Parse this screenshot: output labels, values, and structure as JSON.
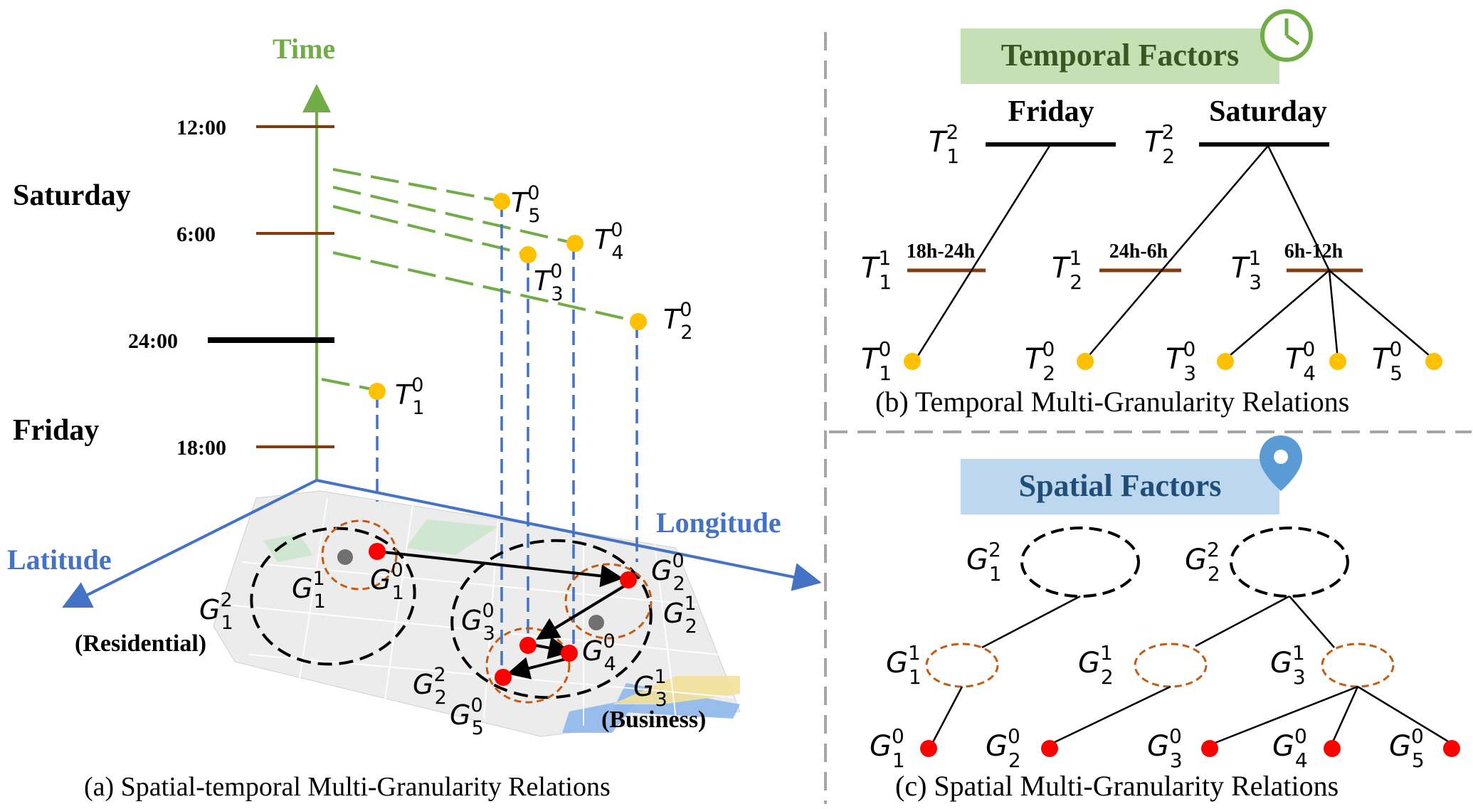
{
  "colors": {
    "time_axis": "#70ad47",
    "geo_axis": "#4472c4",
    "tick_brown": "#843c0c",
    "poi_yellow": "#ffc000",
    "poi_red": "#ff0000",
    "region_dash": "#000000",
    "sub_region_dash": "#c55a11",
    "temporal_header_bg": "#c5e0b4",
    "spatial_header_bg": "#bdd7ee",
    "divider_gray": "#a6a6a6"
  },
  "panel_a": {
    "axis_time": "Time",
    "axis_latitude": "Latitude",
    "axis_longitude": "Longitude",
    "ticks": [
      "12:00",
      "6:00",
      "24:00",
      "18:00"
    ],
    "day_saturday": "Saturday",
    "day_friday": "Friday",
    "region_residential": "(Residential)",
    "region_business": "(Business)",
    "caption": "(a) Spatial-temporal Multi-Granularity Relations",
    "time_points": [
      {
        "base": "T",
        "sub": "5",
        "sup": "0"
      },
      {
        "base": "T",
        "sub": "4",
        "sup": "0"
      },
      {
        "base": "T",
        "sub": "3",
        "sup": "0"
      },
      {
        "base": "T",
        "sub": "2",
        "sup": "0"
      },
      {
        "base": "T",
        "sub": "1",
        "sup": "0"
      }
    ],
    "geo_labels": [
      {
        "base": "G",
        "sub": "1",
        "sup": "1"
      },
      {
        "base": "G",
        "sub": "1",
        "sup": "0"
      },
      {
        "base": "G",
        "sub": "1",
        "sup": "2"
      },
      {
        "base": "G",
        "sub": "2",
        "sup": "0"
      },
      {
        "base": "G",
        "sub": "3",
        "sup": "0"
      },
      {
        "base": "G",
        "sub": "2",
        "sup": "1"
      },
      {
        "base": "G",
        "sub": "4",
        "sup": "0"
      },
      {
        "base": "G",
        "sub": "2",
        "sup": "2"
      },
      {
        "base": "G",
        "sub": "3",
        "sup": "1"
      },
      {
        "base": "G",
        "sub": "5",
        "sup": "0"
      }
    ]
  },
  "panel_b": {
    "header": "Temporal Factors",
    "day_friday": "Friday",
    "day_saturday": "Saturday",
    "range_1": "18h-24h",
    "range_2": "24h-6h",
    "range_3": "6h-12h",
    "caption": "(b) Temporal Multi-Granularity Relations",
    "level2": [
      {
        "base": "T",
        "sub": "1",
        "sup": "2"
      },
      {
        "base": "T",
        "sub": "2",
        "sup": "2"
      }
    ],
    "level1": [
      {
        "base": "T",
        "sub": "1",
        "sup": "1"
      },
      {
        "base": "T",
        "sub": "2",
        "sup": "1"
      },
      {
        "base": "T",
        "sub": "3",
        "sup": "1"
      }
    ],
    "level0": [
      {
        "base": "T",
        "sub": "1",
        "sup": "0"
      },
      {
        "base": "T",
        "sub": "2",
        "sup": "0"
      },
      {
        "base": "T",
        "sub": "3",
        "sup": "0"
      },
      {
        "base": "T",
        "sub": "4",
        "sup": "0"
      },
      {
        "base": "T",
        "sub": "5",
        "sup": "0"
      }
    ]
  },
  "panel_c": {
    "header": "Spatial Factors",
    "caption": "(c) Spatial Multi-Granularity Relations",
    "level2": [
      {
        "base": "G",
        "sub": "1",
        "sup": "2"
      },
      {
        "base": "G",
        "sub": "2",
        "sup": "2"
      }
    ],
    "level1": [
      {
        "base": "G",
        "sub": "1",
        "sup": "1"
      },
      {
        "base": "G",
        "sub": "2",
        "sup": "1"
      },
      {
        "base": "G",
        "sub": "3",
        "sup": "1"
      }
    ],
    "level0": [
      {
        "base": "G",
        "sub": "1",
        "sup": "0"
      },
      {
        "base": "G",
        "sub": "2",
        "sup": "0"
      },
      {
        "base": "G",
        "sub": "3",
        "sup": "0"
      },
      {
        "base": "G",
        "sub": "4",
        "sup": "0"
      },
      {
        "base": "G",
        "sub": "5",
        "sup": "0"
      }
    ]
  },
  "icons": [
    "clock-icon",
    "location-pin-icon"
  ]
}
